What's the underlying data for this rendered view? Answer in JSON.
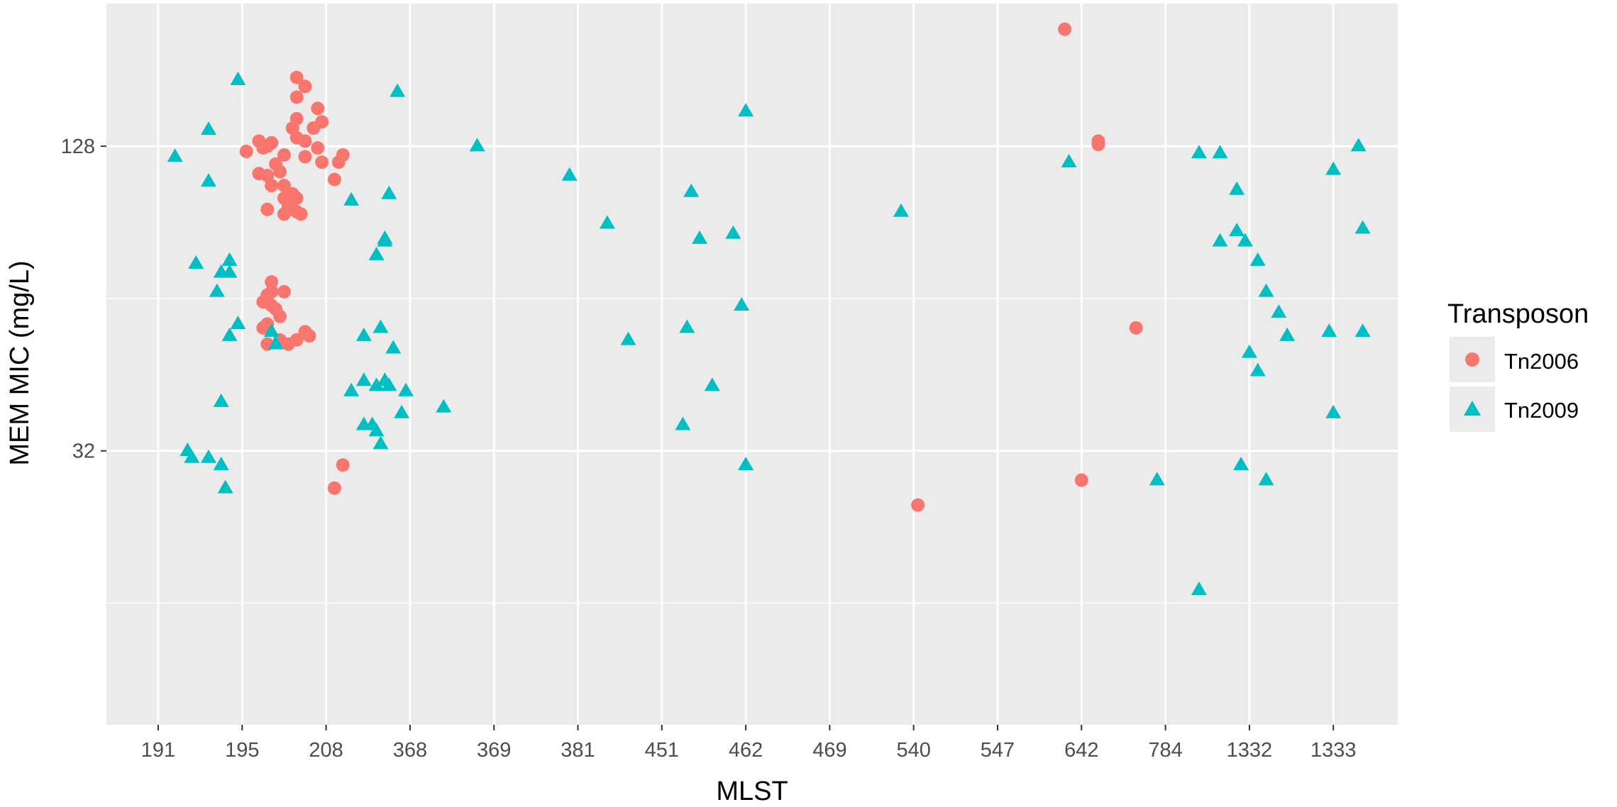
{
  "chart_data": {
    "type": "scatter",
    "title": "",
    "xlabel": "MLST",
    "ylabel": "MEM MIC (mg/L)",
    "x_categories": [
      "191",
      "195",
      "208",
      "368",
      "369",
      "381",
      "451",
      "462",
      "469",
      "540",
      "547",
      "642",
      "784",
      "1332",
      "1333"
    ],
    "y_scale": "log2",
    "y_ticks": [
      32,
      128
    ],
    "ylim": [
      9.2,
      245
    ],
    "grid": true,
    "legend": {
      "title": "Transposon",
      "position": "right"
    },
    "series": [
      {
        "name": "Tn2006",
        "color": "#F8766D",
        "marker": "circle",
        "points": [
          {
            "x": 1.65,
            "y": 175
          },
          {
            "x": 1.75,
            "y": 168
          },
          {
            "x": 1.65,
            "y": 160
          },
          {
            "x": 1.9,
            "y": 152
          },
          {
            "x": 1.65,
            "y": 145
          },
          {
            "x": 1.95,
            "y": 143
          },
          {
            "x": 1.6,
            "y": 139
          },
          {
            "x": 1.85,
            "y": 139
          },
          {
            "x": 1.65,
            "y": 133
          },
          {
            "x": 1.75,
            "y": 131
          },
          {
            "x": 1.75,
            "y": 122
          },
          {
            "x": 1.9,
            "y": 127
          },
          {
            "x": 1.95,
            "y": 119
          },
          {
            "x": 1.5,
            "y": 123
          },
          {
            "x": 1.45,
            "y": 114
          },
          {
            "x": 1.4,
            "y": 118
          },
          {
            "x": 1.5,
            "y": 107
          },
          {
            "x": 1.5,
            "y": 101
          },
          {
            "x": 1.6,
            "y": 103
          },
          {
            "x": 1.55,
            "y": 97
          },
          {
            "x": 1.65,
            "y": 101
          },
          {
            "x": 1.65,
            "y": 95
          },
          {
            "x": 1.7,
            "y": 94
          },
          {
            "x": 1.5,
            "y": 94
          },
          {
            "x": 1.3,
            "y": 96
          },
          {
            "x": 2.1,
            "y": 110
          },
          {
            "x": 2.15,
            "y": 119
          },
          {
            "x": 2.2,
            "y": 123
          },
          {
            "x": 1.3,
            "y": 128
          },
          {
            "x": 1.35,
            "y": 130
          },
          {
            "x": 1.2,
            "y": 131
          },
          {
            "x": 1.25,
            "y": 127
          },
          {
            "x": 1.2,
            "y": 113
          },
          {
            "x": 1.3,
            "y": 112
          },
          {
            "x": 1.35,
            "y": 107
          },
          {
            "x": 1.05,
            "y": 125
          },
          {
            "x": 1.35,
            "y": 69
          },
          {
            "x": 1.35,
            "y": 66
          },
          {
            "x": 1.3,
            "y": 65
          },
          {
            "x": 1.35,
            "y": 62
          },
          {
            "x": 1.5,
            "y": 66
          },
          {
            "x": 1.4,
            "y": 61
          },
          {
            "x": 1.3,
            "y": 57
          },
          {
            "x": 1.25,
            "y": 63
          },
          {
            "x": 1.3,
            "y": 63
          },
          {
            "x": 1.65,
            "y": 53
          },
          {
            "x": 1.8,
            "y": 54
          },
          {
            "x": 1.45,
            "y": 59
          },
          {
            "x": 1.75,
            "y": 55
          },
          {
            "x": 1.25,
            "y": 56
          },
          {
            "x": 1.45,
            "y": 53
          },
          {
            "x": 1.55,
            "y": 52
          },
          {
            "x": 1.3,
            "y": 52
          },
          {
            "x": 2.2,
            "y": 30
          },
          {
            "x": 2.1,
            "y": 27
          },
          {
            "x": 10.8,
            "y": 218
          },
          {
            "x": 11.2,
            "y": 131
          },
          {
            "x": 11.2,
            "y": 129
          },
          {
            "x": 11.65,
            "y": 56
          },
          {
            "x": 11.0,
            "y": 28
          },
          {
            "x": 9.05,
            "y": 25
          }
        ]
      },
      {
        "name": "Tn2009",
        "color": "#00BFC4",
        "marker": "triangle",
        "points": [
          {
            "x": 0.2,
            "y": 122
          },
          {
            "x": 0.6,
            "y": 138
          },
          {
            "x": 0.6,
            "y": 109
          },
          {
            "x": 0.95,
            "y": 173
          },
          {
            "x": 0.45,
            "y": 75
          },
          {
            "x": 0.75,
            "y": 72
          },
          {
            "x": 0.7,
            "y": 66
          },
          {
            "x": 0.85,
            "y": 76
          },
          {
            "x": 0.85,
            "y": 72
          },
          {
            "x": 0.95,
            "y": 57
          },
          {
            "x": 0.85,
            "y": 54
          },
          {
            "x": 1.35,
            "y": 55
          },
          {
            "x": 1.4,
            "y": 52
          },
          {
            "x": 0.75,
            "y": 40
          },
          {
            "x": 0.35,
            "y": 32
          },
          {
            "x": 0.4,
            "y": 31
          },
          {
            "x": 0.6,
            "y": 31
          },
          {
            "x": 0.75,
            "y": 30
          },
          {
            "x": 0.8,
            "y": 27
          },
          {
            "x": 2.3,
            "y": 100
          },
          {
            "x": 2.85,
            "y": 164
          },
          {
            "x": 2.75,
            "y": 103
          },
          {
            "x": 2.7,
            "y": 83
          },
          {
            "x": 2.7,
            "y": 84
          },
          {
            "x": 2.6,
            "y": 78
          },
          {
            "x": 2.45,
            "y": 54
          },
          {
            "x": 2.65,
            "y": 56
          },
          {
            "x": 2.8,
            "y": 51
          },
          {
            "x": 2.3,
            "y": 42
          },
          {
            "x": 2.45,
            "y": 44
          },
          {
            "x": 2.6,
            "y": 43
          },
          {
            "x": 2.75,
            "y": 43
          },
          {
            "x": 2.7,
            "y": 44
          },
          {
            "x": 2.95,
            "y": 42
          },
          {
            "x": 2.9,
            "y": 38
          },
          {
            "x": 2.55,
            "y": 36
          },
          {
            "x": 2.45,
            "y": 36
          },
          {
            "x": 2.6,
            "y": 35
          },
          {
            "x": 2.65,
            "y": 33
          },
          {
            "x": 3.4,
            "y": 39
          },
          {
            "x": 3.8,
            "y": 128
          },
          {
            "x": 4.9,
            "y": 112
          },
          {
            "x": 5.35,
            "y": 90
          },
          {
            "x": 5.6,
            "y": 53
          },
          {
            "x": 6.3,
            "y": 56
          },
          {
            "x": 6.25,
            "y": 36
          },
          {
            "x": 6.35,
            "y": 104
          },
          {
            "x": 6.45,
            "y": 84
          },
          {
            "x": 6.6,
            "y": 43
          },
          {
            "x": 6.85,
            "y": 86
          },
          {
            "x": 6.95,
            "y": 62
          },
          {
            "x": 7.0,
            "y": 150
          },
          {
            "x": 7.0,
            "y": 30
          },
          {
            "x": 8.85,
            "y": 95
          },
          {
            "x": 10.85,
            "y": 119
          },
          {
            "x": 11.9,
            "y": 28
          },
          {
            "x": 12.4,
            "y": 17
          },
          {
            "x": 12.4,
            "y": 124
          },
          {
            "x": 12.65,
            "y": 124
          },
          {
            "x": 12.85,
            "y": 105
          },
          {
            "x": 12.85,
            "y": 87
          },
          {
            "x": 12.65,
            "y": 83
          },
          {
            "x": 12.95,
            "y": 83
          },
          {
            "x": 13.1,
            "y": 76
          },
          {
            "x": 13.2,
            "y": 66
          },
          {
            "x": 13.35,
            "y": 60
          },
          {
            "x": 13.45,
            "y": 54
          },
          {
            "x": 13.0,
            "y": 50
          },
          {
            "x": 13.1,
            "y": 46
          },
          {
            "x": 12.9,
            "y": 30
          },
          {
            "x": 13.2,
            "y": 28
          },
          {
            "x": 14.0,
            "y": 115
          },
          {
            "x": 14.3,
            "y": 128
          },
          {
            "x": 14.35,
            "y": 88
          },
          {
            "x": 13.95,
            "y": 55
          },
          {
            "x": 14.35,
            "y": 55
          },
          {
            "x": 14.0,
            "y": 38
          }
        ]
      }
    ]
  }
}
